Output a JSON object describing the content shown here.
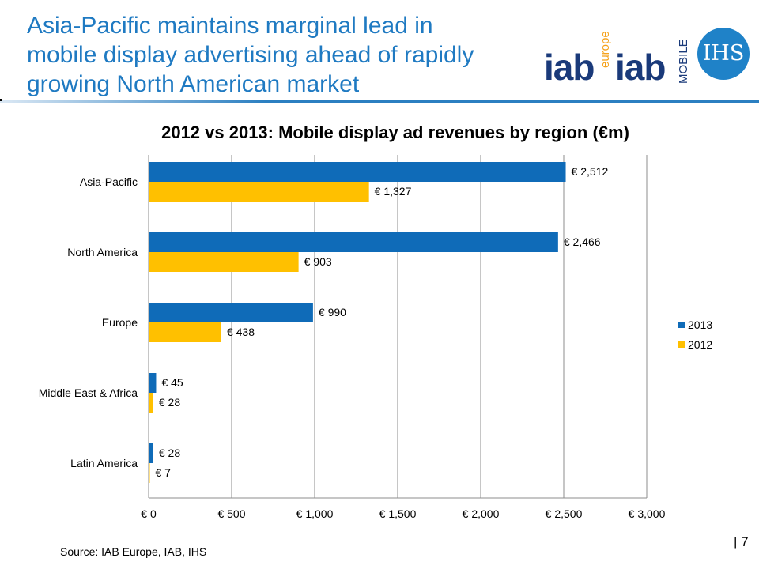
{
  "slide": {
    "title_lines": [
      "Asia-Pacific maintains marginal lead in",
      "mobile display advertising ahead of rapidly",
      "growing North American market"
    ],
    "source": "Source: IAB Europe, IAB, IHS",
    "page_number": "| 7"
  },
  "logos": {
    "iab_europe_main": "iab",
    "iab_europe_sub": "europe",
    "iab_mobile_main": "iab",
    "iab_mobile_sub": "MOBILE",
    "ihs": "IHS",
    "colors": {
      "iab_orange": "#f5a21b",
      "iab_navy": "#1a3a7a",
      "mobile_red": "#e2231a",
      "ihs_blue": "#1f82c8"
    }
  },
  "chart_data": {
    "type": "bar",
    "orientation": "horizontal",
    "title": "2012 vs 2013: Mobile display ad revenues by region (€m)",
    "categories": [
      "Asia-Pacific",
      "North America",
      "Europe",
      "Middle East & Africa",
      "Latin America"
    ],
    "series": [
      {
        "name": "2013",
        "color": "#0f6bb8",
        "values": [
          2512,
          2466,
          990,
          45,
          28
        ],
        "labels": [
          "€ 2,512",
          "€ 2,466",
          "€ 990",
          "€ 45",
          "€ 28"
        ]
      },
      {
        "name": "2012",
        "color": "#ffc000",
        "values": [
          1327,
          903,
          438,
          28,
          7
        ],
        "labels": [
          "€ 1,327",
          "€ 903",
          "€ 438",
          "€ 28",
          "€ 7"
        ]
      }
    ],
    "xlim": [
      0,
      3000
    ],
    "x_ticks": [
      0,
      500,
      1000,
      1500,
      2000,
      2500,
      3000
    ],
    "x_tick_labels": [
      "€ 0",
      "€ 500",
      "€ 1,000",
      "€ 1,500",
      "€ 2,000",
      "€ 2,500",
      "€ 3,000"
    ],
    "grid": "vertical",
    "legend_position": "right",
    "legend_order": [
      "2013",
      "2012"
    ]
  }
}
